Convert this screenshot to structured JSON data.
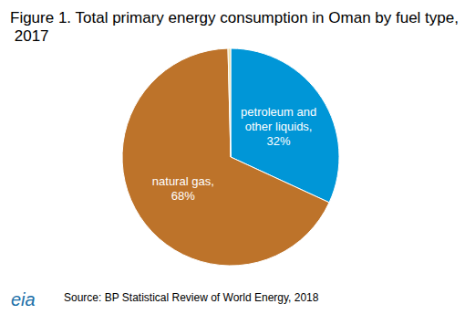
{
  "chart_data": {
    "type": "pie",
    "title": "Figure 1. Total primary energy consumption in Oman by fuel type, 2017",
    "categories": [
      "petroleum and other liquids",
      "natural gas",
      null
    ],
    "values": [
      32,
      68,
      0.4
    ],
    "value_labels": [
      "petroleum and\nother liquids,\n32%",
      "natural gas,\n68%",
      null
    ],
    "colors": [
      "#0096d7",
      "#bd732a",
      "#efe0a8"
    ],
    "data_labels": true,
    "source": "Source: BP Statistical Review of World Energy, 2018",
    "logo": "eia"
  }
}
